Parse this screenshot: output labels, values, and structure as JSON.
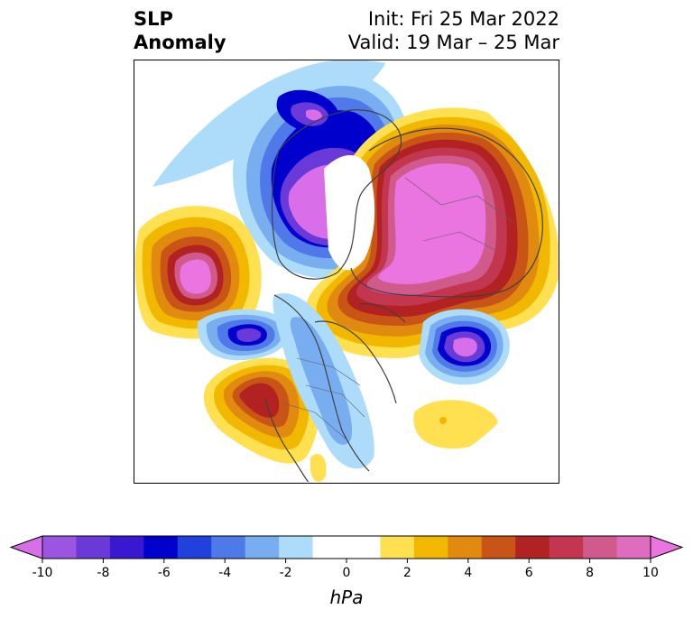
{
  "title": {
    "left_line1": "SLP",
    "left_line2": "Anomaly",
    "right_line1": "Init: Fri 25 Mar 2022",
    "right_line2": "Valid: 19 Mar – 25 Mar"
  },
  "colorbar": {
    "unit": "hPa",
    "min": -10,
    "max": 10,
    "ticks": [
      "-10",
      "-8",
      "-6",
      "-4",
      "-2",
      "0",
      "2",
      "4",
      "6",
      "8",
      "10"
    ],
    "colors": [
      "#d86ee8",
      "#9b55e0",
      "#6a3ad8",
      "#3a18d0",
      "#0000cc",
      "#2140dc",
      "#4f78e8",
      "#78aef0",
      "#acdcfa",
      "#ffffff",
      "#ffffff",
      "#ffe050",
      "#f2b800",
      "#e08a10",
      "#c85515",
      "#b22222",
      "#c23650",
      "#d05a8c",
      "#e06cc0",
      "#ea74e0"
    ],
    "extend": "both"
  },
  "map": {
    "projection": "north-polar-stereographic",
    "field": "sea level pressure anomaly",
    "features": [
      {
        "name": "alaska-yukon-low",
        "sign": "negative",
        "peak": -10
      },
      {
        "name": "north-pacific-high",
        "sign": "positive",
        "peak": 10
      },
      {
        "name": "siberia-high",
        "sign": "positive",
        "peak": 10
      },
      {
        "name": "scandinavia-greenland-high",
        "sign": "positive",
        "peak": 10
      },
      {
        "name": "north-atlantic-low",
        "sign": "negative",
        "peak": -8
      },
      {
        "name": "aleutian-low",
        "sign": "negative",
        "peak": -8
      },
      {
        "name": "california-high",
        "sign": "positive",
        "peak": 6
      },
      {
        "name": "midlatitude-atlantic-high",
        "sign": "positive",
        "peak": 2
      }
    ]
  }
}
